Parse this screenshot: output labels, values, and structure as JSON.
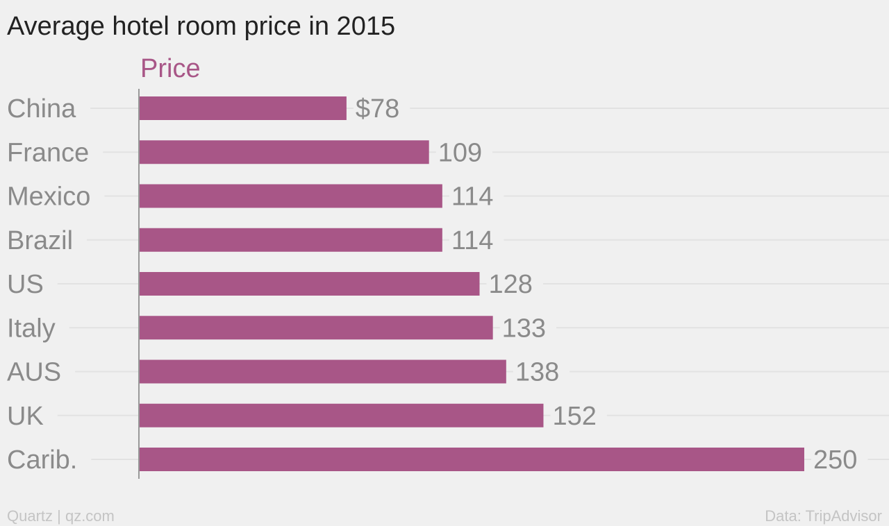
{
  "chart_data": {
    "type": "bar",
    "orientation": "horizontal",
    "title": "Average hotel room price in 2015",
    "categories": [
      "China",
      "France",
      "Mexico",
      "Brazil",
      "US",
      "Italy",
      "AUS",
      "UK",
      "Carib."
    ],
    "series": [
      {
        "name": "Price",
        "values": [
          78,
          109,
          114,
          114,
          128,
          133,
          138,
          152,
          250
        ],
        "value_labels": [
          "$78",
          "109",
          "114",
          "114",
          "128",
          "133",
          "138",
          "152",
          "250"
        ]
      }
    ],
    "xlim": [
      0,
      250
    ],
    "grid": true,
    "legend": "top-left"
  },
  "colors": {
    "bar": "#a85687",
    "series_label": "#a85687",
    "background": "#f0f0f0",
    "gridline": "#e2e2e2",
    "axis": "#999999"
  },
  "footer": {
    "source_left": "Quartz | qz.com",
    "source_right": "Data: TripAdvisor"
  }
}
